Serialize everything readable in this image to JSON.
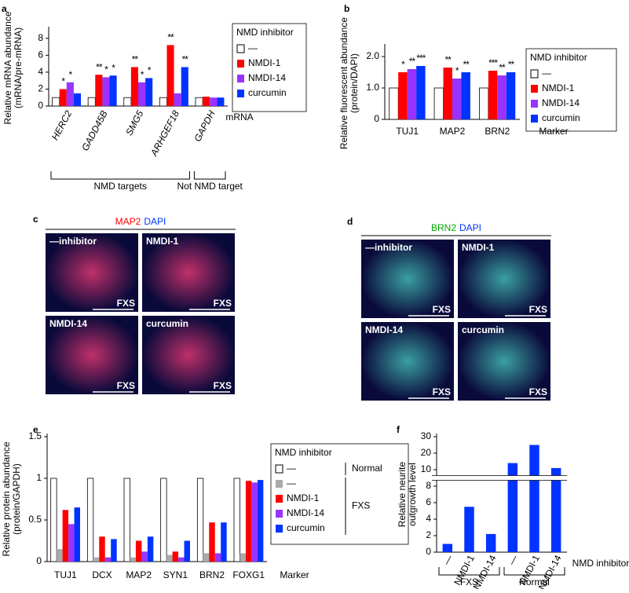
{
  "chart_data": [
    {
      "type": "bar",
      "panel": "a",
      "ylabel": [
        "Relative mRNA abundance",
        "(mRNA/pre-mRNA)"
      ],
      "xlabel": "mRNA",
      "categories": [
        "HERC2",
        "GADD45B",
        "SMG5",
        "ARHGEF18",
        "GAPDH"
      ],
      "italic_categories": true,
      "category_groups": [
        "NMD targets",
        "NMD targets",
        "NMD targets",
        "NMD targets",
        "Not NMD target"
      ],
      "ylim": [
        0,
        9
      ],
      "yticks": [
        0,
        2,
        4,
        6,
        8
      ],
      "legend_title": "NMD inhibitor",
      "series": [
        {
          "name": "—",
          "color": "#ffffff",
          "values": [
            1,
            1,
            1,
            1,
            1
          ],
          "significance": [
            null,
            null,
            null,
            null,
            null
          ]
        },
        {
          "name": "NMDI-1",
          "color": "#ff0000",
          "values": [
            2.0,
            3.7,
            4.6,
            7.2,
            1.1
          ],
          "significance": [
            "*",
            "**",
            "**",
            "**",
            null
          ]
        },
        {
          "name": "NMDI-14",
          "color": "#9933ff",
          "values": [
            2.8,
            3.4,
            2.8,
            1.5,
            1.0
          ],
          "significance": [
            "*",
            "*",
            "*",
            null,
            null
          ]
        },
        {
          "name": "curcumin",
          "color": "#0033ff",
          "values": [
            1.5,
            3.6,
            3.3,
            4.6,
            1.0
          ],
          "significance": [
            null,
            "*",
            "*",
            "**",
            null
          ]
        }
      ]
    },
    {
      "type": "bar",
      "panel": "b",
      "ylabel": [
        "Relative fluorescent abundance",
        "(protein/DAPI)"
      ],
      "xlabel": "Marker",
      "categories": [
        "TUJ1",
        "MAP2",
        "BRN2"
      ],
      "ylim": [
        0,
        2.3
      ],
      "yticks": [
        0,
        {
          "value": 1,
          "label": "1.0"
        },
        {
          "value": 2,
          "label": "2.0"
        }
      ],
      "legend_title": "NMD inhibitor",
      "series": [
        {
          "name": "—",
          "color": "#ffffff",
          "values": [
            1.0,
            1.0,
            1.0
          ],
          "significance": [
            null,
            null,
            null
          ]
        },
        {
          "name": "NMDI-1",
          "color": "#ff0000",
          "values": [
            1.5,
            1.65,
            1.55
          ],
          "significance": [
            "*",
            "**",
            "***"
          ]
        },
        {
          "name": "NMDI-14",
          "color": "#9933ff",
          "values": [
            1.6,
            1.3,
            1.4
          ],
          "significance": [
            "**",
            "*",
            "**"
          ]
        },
        {
          "name": "curcumin",
          "color": "#0033ff",
          "values": [
            1.7,
            1.5,
            1.5
          ],
          "significance": [
            "***",
            "**",
            "**"
          ]
        }
      ]
    },
    {
      "type": "bar",
      "panel": "e",
      "ylabel": [
        "Relative protein abundance",
        "(protein/GAPDH)"
      ],
      "xlabel": "Marker",
      "categories": [
        "TUJ1",
        "DCX",
        "MAP2",
        "SYN1",
        "BRN2",
        "FOXG1"
      ],
      "ylim": [
        0,
        1.5
      ],
      "yticks": [
        0,
        0.5,
        1,
        1.5
      ],
      "legend_title": "NMD inhibitor",
      "series": [
        {
          "name": "—",
          "group": "Normal",
          "color": "#ffffff",
          "values": [
            1,
            1,
            1,
            1,
            1,
            1
          ]
        },
        {
          "name": "—",
          "group": "FXS",
          "color": "#aaaaaa",
          "values": [
            0.15,
            0.05,
            0.05,
            0.08,
            0.1,
            0.1
          ]
        },
        {
          "name": "NMDI-1",
          "group": "FXS",
          "color": "#ff0000",
          "values": [
            0.62,
            0.3,
            0.25,
            0.12,
            0.47,
            0.97
          ]
        },
        {
          "name": "NMDI-14",
          "group": "FXS",
          "color": "#9933ff",
          "values": [
            0.45,
            0.05,
            0.12,
            0.05,
            0.1,
            0.95
          ]
        },
        {
          "name": "curcumin",
          "group": "FXS",
          "color": "#0033ff",
          "values": [
            0.65,
            0.27,
            0.3,
            0.25,
            0.47,
            0.98
          ]
        }
      ]
    },
    {
      "type": "bar",
      "panel": "f",
      "ylabel": [
        "Relative neurite",
        "outgrowth level"
      ],
      "xlabel": "NMD inhibitor",
      "categories": [
        "—",
        "NMDI-1",
        "NMDI-14",
        "—",
        "NMDI-1",
        "NMDI-14"
      ],
      "rotate_categories": true,
      "category_groups": [
        "FXS",
        "FXS",
        "FXS",
        "Normal",
        "Normal",
        "Normal"
      ],
      "ylim": [
        0,
        30
      ],
      "yticks": [
        0,
        2,
        4,
        6,
        8,
        10,
        20,
        30
      ],
      "axis_break": true,
      "color": "#0033ff",
      "values": [
        1,
        5.5,
        2.2,
        14,
        25,
        11
      ]
    }
  ],
  "micrographs": [
    {
      "panel": "c",
      "stain": [
        {
          "text": "MAP2",
          "color": "#ff0000"
        },
        {
          "text": "DAPI",
          "color": "#0033ff"
        }
      ],
      "tint": "#c0306a",
      "tiles": [
        {
          "label": "—inhibitor",
          "tag": "FXS"
        },
        {
          "label": "NMDI-1",
          "tag": "FXS"
        },
        {
          "label": "NMDI-14",
          "tag": "FXS"
        },
        {
          "label": "curcumin",
          "tag": "FXS"
        }
      ]
    },
    {
      "panel": "d",
      "stain": [
        {
          "text": "BRN2",
          "color": "#00aa00"
        },
        {
          "text": "DAPI",
          "color": "#0033ff"
        }
      ],
      "tint": "#3aa0a0",
      "tiles": [
        {
          "label": "—inhibitor",
          "tag": "FXS"
        },
        {
          "label": "NMDI-1",
          "tag": "FXS"
        },
        {
          "label": "NMDI-14",
          "tag": "FXS"
        },
        {
          "label": "curcumin",
          "tag": "FXS"
        }
      ]
    }
  ]
}
